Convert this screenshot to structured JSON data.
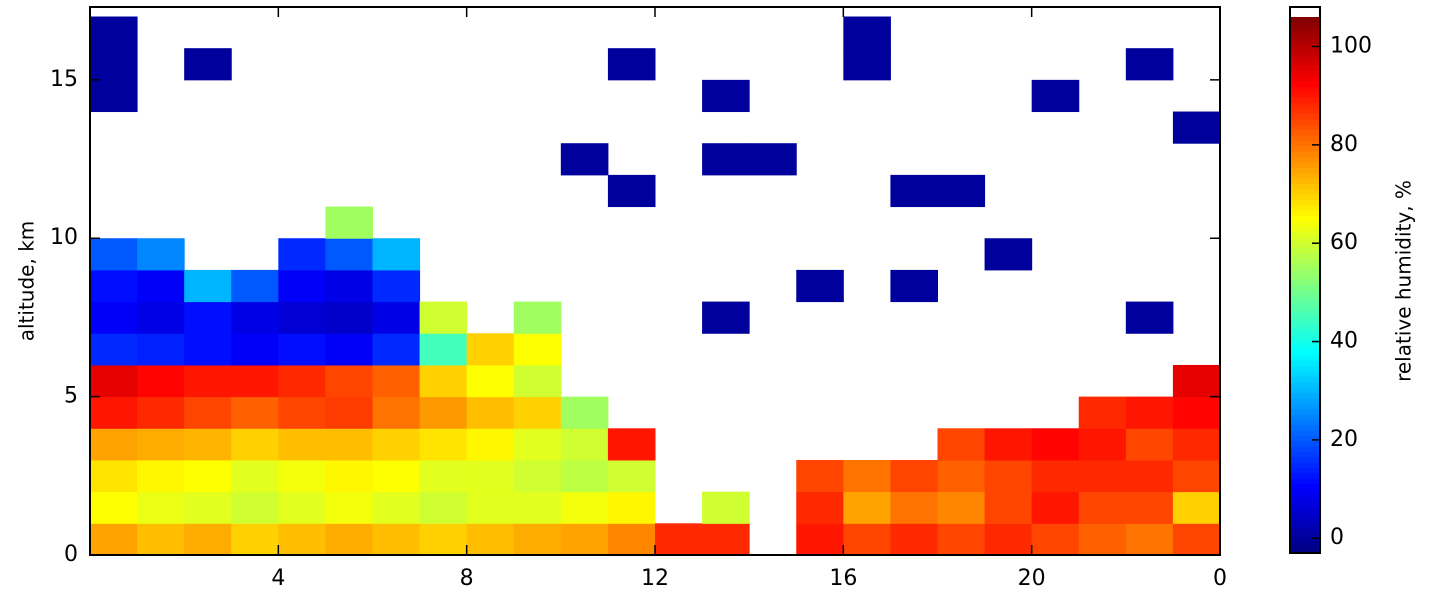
{
  "chart_data": {
    "type": "heatmap",
    "ylabel": "altitude, km",
    "colorbar_label": "relative humidity, %",
    "x": [
      0,
      1,
      2,
      3,
      4,
      5,
      6,
      7,
      8,
      9,
      10,
      11,
      12,
      13,
      14,
      15,
      16,
      17,
      18,
      19,
      20,
      21,
      22,
      23,
      24
    ],
    "y": [
      0,
      1,
      2,
      3,
      4,
      5,
      6,
      7,
      8,
      9,
      10,
      11,
      12,
      13,
      14,
      15,
      16,
      17
    ],
    "values": [
      [
        75,
        65,
        68,
        75,
        90,
        95,
        15,
        10,
        12,
        20,
        null,
        null,
        null,
        null,
        0,
        0,
        0
      ],
      [
        72,
        63,
        66,
        74,
        88,
        92,
        14,
        8,
        10,
        25,
        null,
        null,
        null,
        null,
        null,
        null,
        null
      ],
      [
        74,
        62,
        65,
        73,
        85,
        90,
        12,
        12,
        30,
        null,
        null,
        null,
        null,
        null,
        null,
        0,
        null
      ],
      [
        70,
        60,
        62,
        70,
        82,
        90,
        10,
        8,
        20,
        null,
        null,
        null,
        null,
        null,
        null,
        null,
        null
      ],
      [
        72,
        62,
        64,
        72,
        85,
        88,
        12,
        6,
        10,
        15,
        null,
        null,
        null,
        null,
        null,
        null,
        null
      ],
      [
        74,
        64,
        66,
        72,
        86,
        85,
        10,
        5,
        8,
        20,
        55,
        null,
        null,
        null,
        null,
        null,
        null
      ],
      [
        72,
        62,
        65,
        70,
        80,
        82,
        15,
        8,
        15,
        30,
        null,
        null,
        null,
        null,
        null,
        null,
        null
      ],
      [
        70,
        60,
        62,
        68,
        76,
        70,
        45,
        60,
        null,
        null,
        null,
        null,
        null,
        null,
        null,
        null,
        null
      ],
      [
        72,
        62,
        62,
        66,
        72,
        65,
        70,
        null,
        null,
        null,
        null,
        null,
        null,
        null,
        null,
        null,
        null
      ],
      [
        74,
        62,
        60,
        62,
        70,
        60,
        65,
        55,
        null,
        null,
        null,
        null,
        null,
        null,
        null,
        null,
        null
      ],
      [
        75,
        64,
        58,
        60,
        55,
        null,
        null,
        null,
        null,
        null,
        null,
        null,
        0,
        null,
        null,
        null,
        null
      ],
      [
        78,
        66,
        60,
        90,
        null,
        null,
        null,
        null,
        null,
        null,
        null,
        0,
        null,
        null,
        null,
        0,
        null
      ],
      [
        88,
        null,
        null,
        null,
        null,
        null,
        null,
        null,
        null,
        null,
        null,
        null,
        null,
        null,
        null,
        null,
        null
      ],
      [
        88,
        60,
        null,
        null,
        null,
        null,
        null,
        0,
        null,
        null,
        null,
        null,
        0,
        null,
        0,
        null,
        null
      ],
      [
        null,
        null,
        null,
        null,
        null,
        null,
        null,
        null,
        null,
        null,
        null,
        null,
        0,
        null,
        null,
        null,
        null
      ],
      [
        90,
        88,
        85,
        null,
        null,
        null,
        null,
        null,
        0,
        null,
        null,
        null,
        null,
        null,
        null,
        null,
        null
      ],
      [
        85,
        75,
        80,
        null,
        null,
        null,
        null,
        null,
        null,
        null,
        null,
        null,
        null,
        null,
        null,
        0,
        0
      ],
      [
        88,
        80,
        85,
        null,
        null,
        null,
        null,
        null,
        0,
        null,
        null,
        0,
        null,
        null,
        null,
        null,
        null
      ],
      [
        85,
        78,
        82,
        85,
        null,
        null,
        null,
        null,
        null,
        null,
        null,
        0,
        null,
        null,
        null,
        null,
        null
      ],
      [
        88,
        85,
        85,
        90,
        null,
        null,
        null,
        null,
        null,
        0,
        null,
        null,
        null,
        null,
        null,
        null,
        null
      ],
      [
        85,
        90,
        88,
        92,
        null,
        null,
        null,
        null,
        null,
        null,
        null,
        null,
        null,
        null,
        0,
        null,
        null
      ],
      [
        82,
        85,
        88,
        90,
        88,
        null,
        null,
        null,
        null,
        null,
        null,
        null,
        null,
        null,
        null,
        null,
        null
      ],
      [
        80,
        85,
        88,
        85,
        90,
        null,
        null,
        0,
        null,
        null,
        null,
        null,
        null,
        null,
        null,
        0,
        null
      ],
      [
        85,
        70,
        85,
        88,
        92,
        95,
        null,
        null,
        null,
        null,
        null,
        null,
        null,
        0,
        null,
        null,
        null
      ]
    ],
    "xlim": [
      0,
      24
    ],
    "xticks": [
      4,
      8,
      12,
      16,
      20,
      {
        "value": 24,
        "label": "0"
      }
    ],
    "ylim": [
      0,
      17.3
    ],
    "yticks": [
      0,
      5,
      10,
      15
    ],
    "clim": [
      -3,
      106
    ],
    "cticks": [
      0,
      20,
      40,
      60,
      80,
      100
    ],
    "colormap": "jet"
  }
}
